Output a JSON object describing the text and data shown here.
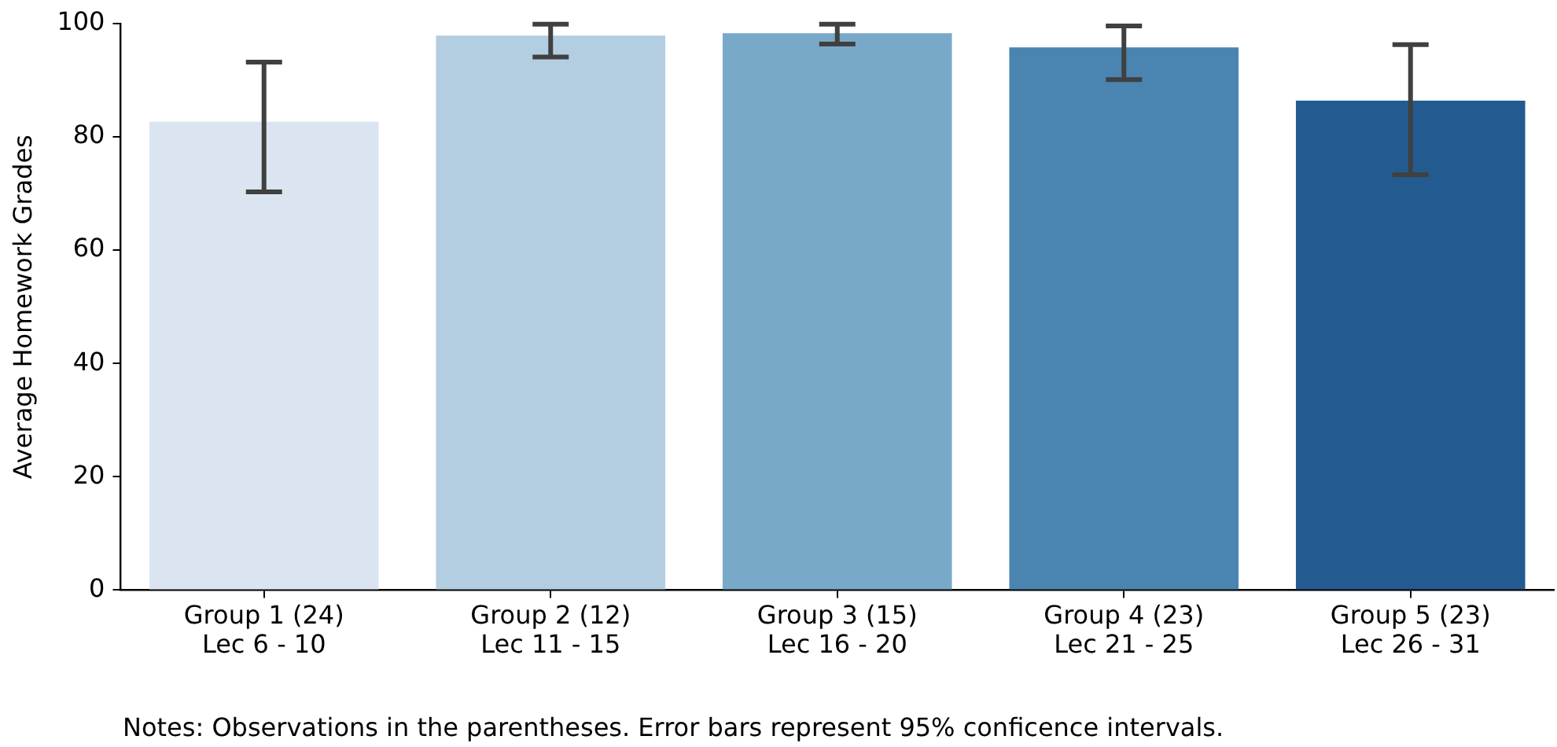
{
  "chart_data": {
    "type": "bar",
    "ylabel": "Average Homework Grades",
    "categories": [
      "Group 1 (24)\nLec 6 - 10",
      "Group 2 (12)\nLec 11 - 15",
      "Group 3 (15)\nLec 16 - 20",
      "Group 4 (23)\nLec 21 - 25",
      "Group 5 (23)\nLec 26 - 31"
    ],
    "values": [
      82.7,
      97.9,
      98.3,
      95.8,
      86.4
    ],
    "colors": [
      "#dae5f1",
      "#b4cee1",
      "#79a9c9",
      "#4a85b1",
      "#235b91"
    ],
    "errors": [
      [
        70.3,
        93.2
      ],
      [
        94.1,
        99.9
      ],
      [
        96.4,
        99.9
      ],
      [
        90.1,
        99.6
      ],
      [
        73.3,
        96.3
      ]
    ],
    "ylim": [
      0,
      100
    ],
    "yticks": [
      0,
      20,
      40,
      60,
      80,
      100
    ],
    "annotations": [
      "Notes: Observations in the parentheses. Error bars represent 95% conficence intervals."
    ]
  }
}
